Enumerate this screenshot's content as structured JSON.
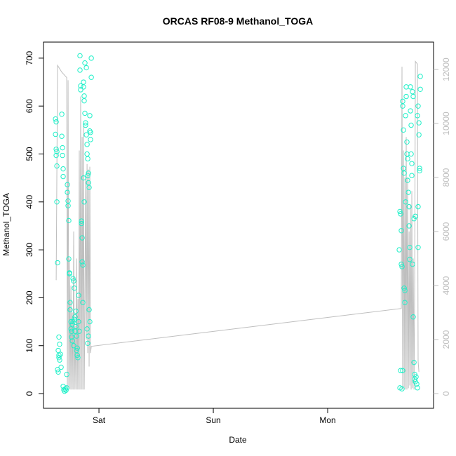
{
  "chart_data": {
    "type": "scatter",
    "title": "ORCAS RF08-9 Methanol_TOGA",
    "xlabel": "Date",
    "ylabel": "Methanol_TOGA",
    "xlim": [
      -0.485,
      2.926
    ],
    "xticks": [
      {
        "value": 0,
        "label": "Sat"
      },
      {
        "value": 1,
        "label": "Sun"
      },
      {
        "value": 2,
        "label": "Mon"
      }
    ],
    "ylim": [
      -30.7,
      733.5
    ],
    "yticks": [
      0,
      100,
      200,
      300,
      400,
      500,
      600,
      700
    ],
    "y2lim": [
      -545,
      13013
    ],
    "y2ticks": [
      0,
      2000,
      4000,
      6000,
      8000,
      10000,
      12000
    ],
    "series": [
      {
        "type": "scatter",
        "color": "#1ef0c8",
        "x": [
          -0.38,
          -0.374,
          -0.38,
          -0.374,
          -0.368,
          -0.374,
          -0.368,
          -0.368,
          -0.362,
          -0.362,
          -0.356,
          -0.356,
          -0.35,
          -0.35,
          -0.35,
          -0.344,
          -0.344,
          -0.337,
          -0.331,
          -0.325,
          -0.325,
          -0.319,
          -0.319,
          -0.313,
          -0.313,
          -0.313,
          -0.307,
          -0.301,
          -0.294,
          -0.288,
          -0.282,
          -0.282,
          -0.276,
          -0.276,
          -0.27,
          -0.27,
          -0.264,
          -0.264,
          -0.258,
          -0.258,
          -0.252,
          -0.252,
          -0.245,
          -0.245,
          -0.239,
          -0.239,
          -0.233,
          -0.233,
          -0.227,
          -0.227,
          -0.221,
          -0.221,
          -0.215,
          -0.215,
          -0.209,
          -0.209,
          -0.202,
          -0.202,
          -0.196,
          -0.196,
          -0.19,
          -0.19,
          -0.184,
          -0.178,
          -0.178,
          -0.172,
          -0.166,
          -0.166,
          -0.16,
          -0.16,
          -0.153,
          -0.153,
          -0.147,
          -0.147,
          -0.141,
          -0.141,
          -0.135,
          -0.135,
          -0.129,
          -0.129,
          -0.123,
          -0.123,
          -0.117,
          -0.117,
          -0.11,
          -0.11,
          -0.104,
          -0.104,
          -0.098,
          -0.098,
          -0.092,
          -0.092,
          -0.086,
          -0.086,
          -0.08,
          -0.08,
          -0.074,
          -0.074,
          -0.067,
          -0.067,
          -0.08,
          -0.092,
          -0.098,
          -0.104,
          -0.129,
          -0.135,
          2.626,
          2.632,
          2.638,
          2.644,
          2.644,
          2.65,
          2.656,
          2.656,
          2.663,
          2.663,
          2.669,
          2.669,
          2.675,
          2.675,
          2.681,
          2.681,
          2.687,
          2.687,
          2.693,
          2.693,
          2.699,
          2.699,
          2.706,
          2.712,
          2.712,
          2.718,
          2.718,
          2.724,
          2.724,
          2.73,
          2.73,
          2.736,
          2.736,
          2.742,
          2.748,
          2.755,
          2.761,
          2.761,
          2.767,
          2.773,
          2.779,
          2.785,
          2.791,
          2.791,
          2.798,
          2.798,
          2.804,
          2.804,
          2.81,
          2.81,
          2.632,
          2.638,
          2.65,
          2.656,
          2.742,
          2.748,
          2.755,
          2.767,
          2.785,
          2.791
        ],
        "values": [
          573,
          567,
          541,
          510,
          505,
          497,
          475,
          400,
          273,
          50,
          45,
          90,
          75,
          80,
          118,
          103,
          70,
          82,
          55,
          583,
          537,
          513,
          497,
          469,
          453,
          15,
          8,
          5,
          10,
          7,
          12,
          40,
          436,
          420,
          402,
          392,
          361,
          281,
          252,
          250,
          190,
          175,
          150,
          135,
          130,
          118,
          145,
          110,
          240,
          150,
          235,
          100,
          220,
          155,
          160,
          130,
          172,
          140,
          120,
          90,
          95,
          80,
          75,
          150,
          205,
          130,
          705,
          675,
          642,
          634,
          360,
          355,
          325,
          275,
          268,
          190,
          650,
          640,
          621,
          611,
          690,
          585,
          565,
          560,
          680,
          540,
          520,
          500,
          490,
          455,
          460,
          440,
          430,
          175,
          580,
          548,
          545,
          530,
          660,
          700,
          150,
          120,
          105,
          135,
          400,
          450,
          300,
          380,
          375,
          340,
          270,
          265,
          610,
          600,
          550,
          470,
          460,
          220,
          215,
          190,
          400,
          580,
          640,
          620,
          525,
          500,
          490,
          445,
          420,
          390,
          350,
          305,
          280,
          640,
          590,
          560,
          500,
          480,
          455,
          270,
          160,
          65,
          40,
          30,
          25,
          35,
          20,
          12,
          305,
          600,
          565,
          540,
          470,
          465,
          662,
          635,
          12,
          48,
          10,
          48,
          630,
          620,
          365,
          370,
          580,
          390
        ]
      },
      {
        "type": "line",
        "axis": "y2",
        "color": "#bebebe",
        "x": [
          -0.374,
          -0.362,
          -0.325,
          -0.282,
          -0.276,
          -0.27,
          -0.264,
          -0.258,
          -0.252,
          -0.245,
          -0.239,
          -0.233,
          -0.227,
          -0.221,
          -0.215,
          -0.209,
          -0.202,
          -0.196,
          -0.19,
          -0.184,
          -0.178,
          -0.172,
          -0.166,
          -0.16,
          -0.153,
          -0.147,
          -0.141,
          -0.135,
          -0.129,
          -0.123,
          -0.117,
          -0.11,
          -0.104,
          -0.098,
          -0.092,
          -0.086,
          -0.08,
          -0.074,
          -0.067,
          2.644,
          2.65,
          2.656,
          2.663,
          2.669,
          2.675,
          2.681,
          2.687,
          2.693,
          2.699,
          2.706,
          2.712,
          2.718,
          2.724,
          2.73,
          2.736,
          2.742,
          2.748,
          2.755,
          2.761,
          2.767,
          2.785,
          2.791,
          2.798
        ],
        "values": [
          4200,
          12150,
          11900,
          11700,
          150,
          11600,
          150,
          5000,
          150,
          4000,
          150,
          3000,
          150,
          6000,
          150,
          2500,
          150,
          5000,
          150,
          3500,
          150,
          9000,
          150,
          11000,
          150,
          9500,
          150,
          10000,
          150,
          3000,
          8000,
          2000,
          8500,
          1500,
          8300,
          1000,
          8400,
          1500,
          1750,
          3150,
          12100,
          150,
          9000,
          150,
          8000,
          150,
          9500,
          150,
          8000,
          200,
          6000,
          300,
          7000,
          150,
          7500,
          200,
          5000,
          150,
          4000,
          12300,
          12200,
          1200,
          800
        ]
      }
    ]
  }
}
